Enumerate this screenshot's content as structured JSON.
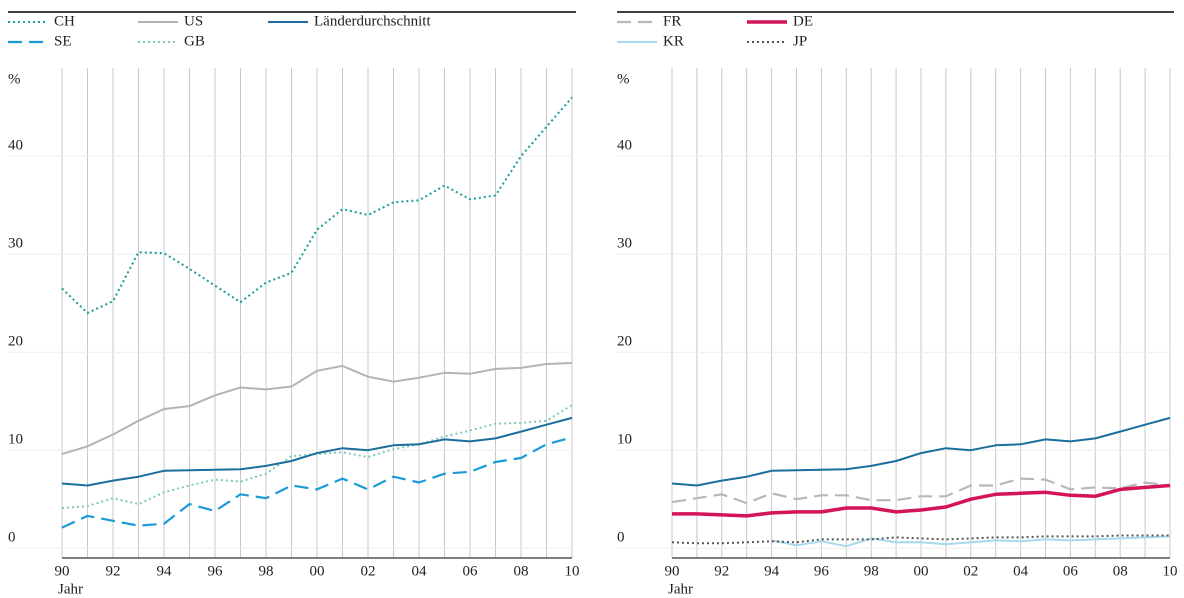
{
  "chart_data": [
    {
      "type": "line",
      "y_label": "%",
      "x_label": "Jahr",
      "x": [
        1990,
        1991,
        1992,
        1993,
        1994,
        1995,
        1996,
        1997,
        1998,
        1999,
        2000,
        2001,
        2002,
        2003,
        2004,
        2005,
        2006,
        2007,
        2008,
        2009,
        2010
      ],
      "xlim": [
        1990,
        2010
      ],
      "xticks": [
        {
          "value": 1990,
          "label": "90"
        },
        {
          "value": 1992,
          "label": "92"
        },
        {
          "value": 1994,
          "label": "94"
        },
        {
          "value": 1996,
          "label": "96"
        },
        {
          "value": 1998,
          "label": "98"
        },
        {
          "value": 2000,
          "label": "00"
        },
        {
          "value": 2002,
          "label": "02"
        },
        {
          "value": 2004,
          "label": "04"
        },
        {
          "value": 2006,
          "label": "06"
        },
        {
          "value": 2008,
          "label": "08"
        },
        {
          "value": 2010,
          "label": "10"
        }
      ],
      "minor_xticks": [
        1991,
        1993,
        1995,
        1997,
        1999,
        2001,
        2003,
        2005,
        2007,
        2009
      ],
      "ylim": [
        -1,
        49
      ],
      "yticks": [
        0,
        10,
        20,
        30,
        40
      ],
      "series": [
        {
          "name": "CH",
          "color": "#1a9a9a",
          "style": "dotted",
          "values": [
            26.5,
            24,
            25.2,
            30.2,
            30.1,
            28.5,
            26.8,
            25.1,
            27.1,
            28.1,
            32.5,
            34.6,
            34,
            35.3,
            35.5,
            37,
            35.6,
            36,
            40,
            43,
            46
          ]
        },
        {
          "name": "SE",
          "color": "#1a9ad6",
          "style": "dashed",
          "values": [
            2.1,
            3.3,
            2.8,
            2.3,
            2.5,
            4.5,
            3.8,
            5.5,
            5.1,
            6.4,
            6,
            7.1,
            6,
            7.3,
            6.7,
            7.6,
            7.8,
            8.8,
            9.2,
            10.6,
            11.3
          ]
        },
        {
          "name": "US",
          "color": "#b4b4b4",
          "style": "solid",
          "values": [
            9.6,
            10.4,
            11.6,
            13,
            14.2,
            14.5,
            15.6,
            16.4,
            16.2,
            16.5,
            18.1,
            18.6,
            17.5,
            17,
            17.4,
            17.9,
            17.8,
            18.3,
            18.4,
            18.8,
            18.9
          ]
        },
        {
          "name": "GB",
          "color": "#7fc8c0",
          "style": "dotted",
          "values": [
            4.1,
            4.3,
            5.1,
            4.5,
            5.7,
            6.4,
            7,
            6.8,
            7.6,
            9.4,
            9.6,
            9.8,
            9.3,
            10.1,
            10.6,
            11.4,
            12,
            12.7,
            12.8,
            13,
            14.6
          ]
        },
        {
          "name": "Länderdurchschnitt",
          "color": "#1b6e9e",
          "style": "solid",
          "values": [
            6.6,
            6.4,
            6.9,
            7.3,
            7.9,
            7.95,
            8,
            8.05,
            8.4,
            8.9,
            9.7,
            10.2,
            10,
            10.5,
            10.6,
            11.1,
            10.9,
            11.2,
            11.9,
            12.6,
            13.3
          ]
        }
      ]
    },
    {
      "type": "line",
      "y_label": "%",
      "x_label": "Jahr",
      "x": [
        1990,
        1991,
        1992,
        1993,
        1994,
        1995,
        1996,
        1997,
        1998,
        1999,
        2000,
        2001,
        2002,
        2003,
        2004,
        2005,
        2006,
        2007,
        2008,
        2009,
        2010
      ],
      "xlim": [
        1990,
        2010
      ],
      "xticks": [
        {
          "value": 1990,
          "label": "90"
        },
        {
          "value": 1992,
          "label": "92"
        },
        {
          "value": 1994,
          "label": "94"
        },
        {
          "value": 1996,
          "label": "96"
        },
        {
          "value": 1998,
          "label": "98"
        },
        {
          "value": 2000,
          "label": "00"
        },
        {
          "value": 2002,
          "label": "02"
        },
        {
          "value": 2004,
          "label": "04"
        },
        {
          "value": 2006,
          "label": "06"
        },
        {
          "value": 2008,
          "label": "08"
        },
        {
          "value": 2010,
          "label": "10"
        }
      ],
      "minor_xticks": [
        1991,
        1993,
        1995,
        1997,
        1999,
        2001,
        2003,
        2005,
        2007,
        2009
      ],
      "ylim": [
        -1,
        49
      ],
      "yticks": [
        0,
        10,
        20,
        30,
        40
      ],
      "series": [
        {
          "name": "FR",
          "color": "#b8b8b8",
          "style": "dashed",
          "values": [
            4.7,
            5.1,
            5.5,
            4.6,
            5.6,
            5,
            5.4,
            5.4,
            4.9,
            4.9,
            5.3,
            5.3,
            6.4,
            6.4,
            7.1,
            7,
            6,
            6.2,
            6.1,
            6.7,
            6.4
          ]
        },
        {
          "name": "KR",
          "color": "#a8d8ec",
          "style": "solid",
          "values": [
            null,
            null,
            null,
            null,
            0.8,
            0.3,
            0.7,
            0.2,
            1.0,
            0.6,
            0.6,
            0.4,
            0.6,
            0.8,
            0.7,
            0.9,
            0.8,
            0.9,
            1.0,
            1.1,
            1.2
          ]
        },
        {
          "name": "DE",
          "color": "#d4145a",
          "style": "thick",
          "values": [
            3.5,
            3.5,
            3.4,
            3.3,
            3.6,
            3.7,
            3.7,
            4.1,
            4.1,
            3.7,
            3.9,
            4.2,
            5,
            5.5,
            5.6,
            5.7,
            5.4,
            5.3,
            6,
            6.2,
            6.4
          ]
        },
        {
          "name": "JP",
          "color": "#555555",
          "style": "dotted",
          "values": [
            0.6,
            0.5,
            0.5,
            0.6,
            0.7,
            0.6,
            0.9,
            0.9,
            0.9,
            1.1,
            1.0,
            0.9,
            1.0,
            1.1,
            1.1,
            1.2,
            1.2,
            1.2,
            1.3,
            1.3,
            1.3
          ]
        },
        {
          "name": "Länderdurchschnitt",
          "color": "#1b6e9e",
          "style": "solid",
          "in_legend": false,
          "values": [
            6.6,
            6.4,
            6.9,
            7.3,
            7.9,
            7.95,
            8,
            8.05,
            8.4,
            8.9,
            9.7,
            10.2,
            10,
            10.5,
            10.6,
            11.1,
            10.9,
            11.2,
            11.9,
            12.6,
            13.3
          ]
        }
      ]
    }
  ]
}
